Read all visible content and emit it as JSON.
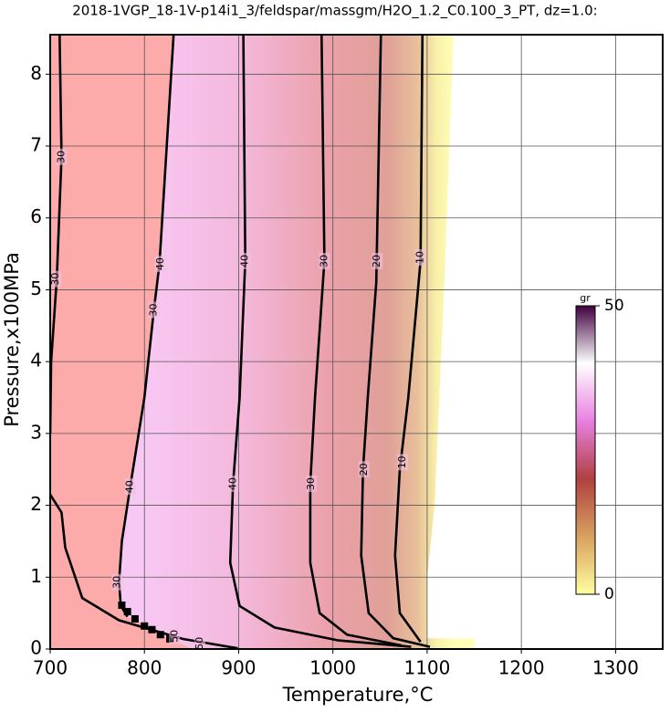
{
  "chart_data": {
    "type": "contour",
    "title": "2018-1VGP_18-1V-p14i1_3/feldspar/massgm/H2O_1.2_C0.100_3_PT, dz=1.0:",
    "x_label": "Temperature,°C",
    "y_label": "Pressure,x100MPa",
    "xlim": [
      700,
      1350
    ],
    "xticks": [
      700,
      800,
      900,
      1000,
      1100,
      1200,
      1300
    ],
    "ylim": [
      0,
      8.55
    ],
    "yticks": [
      0,
      1,
      2,
      3,
      4,
      5,
      6,
      7,
      8
    ],
    "grid": true,
    "series": [
      {
        "color": "#000000",
        "x": [
          710,
          712,
          707,
          701,
          700,
          null,
          700,
          712,
          716,
          734,
          773,
          841,
          899
        ],
        "y": [
          8.55,
          6.85,
          5.15,
          4,
          3,
          null,
          2.15,
          1.9,
          1.41,
          0.71,
          0.4,
          0.14,
          0.01
        ]
      },
      {
        "color": "#000000",
        "x": [
          831,
          816,
          810,
          800,
          785,
          776,
          773,
          775,
          782
        ],
        "y": [
          8.55,
          5.36,
          4.72,
          3.5,
          2.26,
          1.5,
          0.93,
          0.6,
          0.45
        ]
      },
      {
        "color": "#000000",
        "x": [
          905,
          907,
          901,
          894,
          891,
          901,
          938,
          1006,
          1083
        ],
        "y": [
          8.55,
          5.4,
          3.5,
          2.3,
          1.2,
          0.6,
          0.3,
          0.12,
          0.03
        ]
      },
      {
        "color": "#000000",
        "x": [
          988,
          991,
          981,
          976,
          976,
          986,
          1015,
          1073
        ],
        "y": [
          8.55,
          5.4,
          3.5,
          2.3,
          1.2,
          0.5,
          0.2,
          0.05
        ]
      },
      {
        "color": "#000000",
        "x": [
          1051,
          1046,
          1037,
          1032,
          1030,
          1038,
          1064,
          1103
        ],
        "y": [
          8.55,
          5.1,
          3.5,
          2.5,
          1.3,
          0.5,
          0.15,
          0.03
        ]
      },
      {
        "color": "#000000",
        "x": [
          1095,
          1093,
          1080,
          1071,
          1066,
          1071,
          1093
        ],
        "y": [
          8.55,
          5.4,
          3.5,
          2.5,
          1.3,
          0.5,
          0.1
        ]
      }
    ],
    "markers": {
      "color": "#000000",
      "x": [
        776,
        782,
        790,
        800,
        808,
        817,
        827
      ],
      "y": [
        0.61,
        0.52,
        0.42,
        0.32,
        0.27,
        0.2,
        0.14
      ]
    },
    "contour_labels": [
      {
        "text": 30,
        "x": 712,
        "y": 6.85
      },
      {
        "text": 30,
        "x": 706,
        "y": 5.15
      },
      {
        "text": 40,
        "x": 817,
        "y": 5.36
      },
      {
        "text": 30,
        "x": 810,
        "y": 4.72
      },
      {
        "text": 40,
        "x": 785,
        "y": 2.26
      },
      {
        "text": 30,
        "x": 771,
        "y": 0.93
      },
      {
        "text": 40,
        "x": 907,
        "y": 5.4
      },
      {
        "text": 40,
        "x": 894,
        "y": 2.3
      },
      {
        "text": 30,
        "x": 991,
        "y": 5.4
      },
      {
        "text": 30,
        "x": 977,
        "y": 2.3
      },
      {
        "text": 20,
        "x": 1047,
        "y": 5.4
      },
      {
        "text": 20,
        "x": 1033,
        "y": 2.5
      },
      {
        "text": 10,
        "x": 1093,
        "y": 5.45
      },
      {
        "text": 10,
        "x": 1074,
        "y": 2.6
      },
      {
        "text": 50,
        "x": 832,
        "y": 0.18
      },
      {
        "text": 50,
        "x": 859,
        "y": 0.08
      }
    ],
    "colorbar": {
      "label": "gr",
      "range": [
        0,
        50
      ],
      "ticks": [
        0,
        50
      ],
      "colors": [
        "#ffffa0",
        "#d8a060",
        "#b04040",
        "#e880e0",
        "#ffffff",
        "#400040"
      ]
    }
  }
}
